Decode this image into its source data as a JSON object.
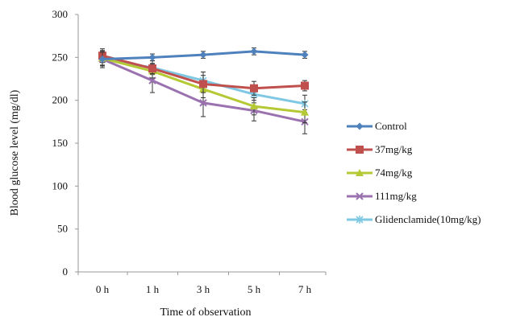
{
  "chart_data": {
    "type": "line",
    "title": "",
    "xlabel": "Time of observation",
    "ylabel": "Blood glucose level (mg/dl)",
    "categories": [
      "0 h",
      "1 h",
      "3 h",
      "5 h",
      "7 h"
    ],
    "ylim": [
      0,
      300
    ],
    "yticks": [
      0,
      50,
      100,
      150,
      200,
      250,
      300
    ],
    "grid": false,
    "legend_position": "right",
    "series": [
      {
        "name": "Control",
        "color": "#4f81bd",
        "marker": "diamond",
        "values": [
          248,
          250,
          253,
          257,
          253
        ],
        "errors": [
          8,
          4,
          4,
          4,
          4
        ]
      },
      {
        "name": "37mg/kg",
        "color": "#c0504d",
        "marker": "square",
        "values": [
          252,
          237,
          219,
          214,
          217
        ],
        "errors": [
          8,
          6,
          10,
          8,
          6
        ]
      },
      {
        "name": "74mg/kg",
        "color": "#b5c934",
        "marker": "triangle",
        "values": [
          249,
          234,
          213,
          193,
          186
        ],
        "errors": [
          8,
          8,
          10,
          10,
          12
        ]
      },
      {
        "name": "111mg/kg",
        "color": "#9b72b0",
        "marker": "x",
        "values": [
          248,
          223,
          197,
          188,
          175
        ],
        "errors": [
          10,
          14,
          16,
          12,
          14
        ]
      },
      {
        "name": "Glidenclamide(10mg/kg)",
        "color": "#7ec8e3",
        "marker": "star",
        "values": [
          248,
          238,
          223,
          207,
          196
        ],
        "errors": [
          8,
          8,
          10,
          10,
          10
        ]
      }
    ]
  }
}
